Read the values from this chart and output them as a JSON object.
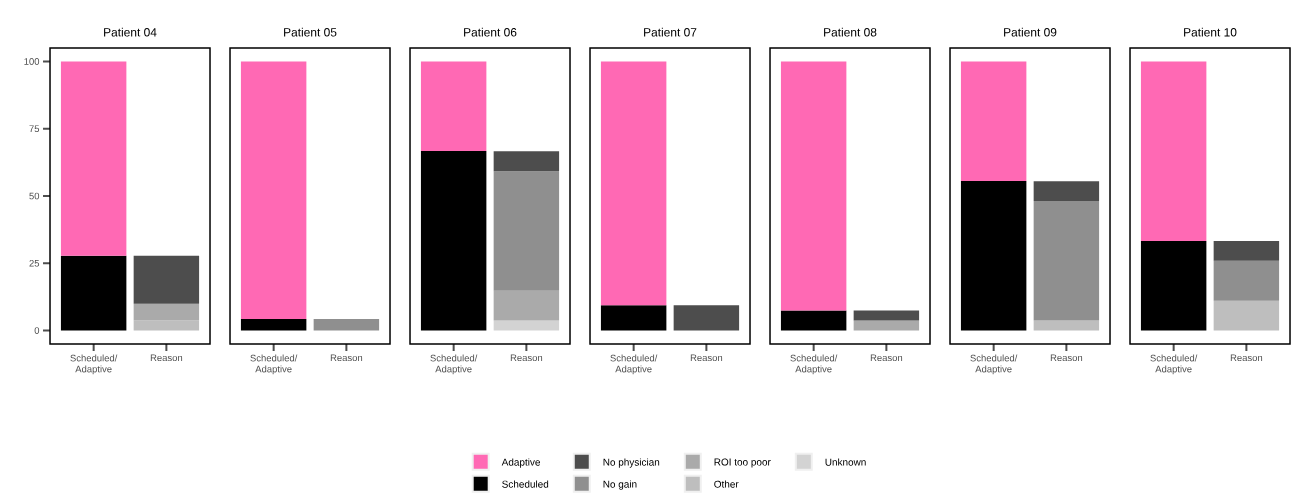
{
  "chart_data": [
    {
      "type": "bar",
      "title": "Patient 04",
      "categories": [
        "Scheduled/ Adaptive",
        "Reason"
      ],
      "stacked": true,
      "ylim": [
        -5,
        105
      ],
      "yticks": [
        0,
        25,
        50,
        75,
        100
      ],
      "series": [
        {
          "color": "#bebebe",
          "values": [
            null,
            3.7
          ]
        },
        {
          "color": "#aaaaaa",
          "values": [
            null,
            6.3
          ]
        },
        {
          "color": "#4d4d4d",
          "values": [
            null,
            17.8
          ]
        },
        {
          "color": "#000000",
          "values": [
            27.8,
            null
          ]
        },
        {
          "color": "#ff69b4",
          "values": [
            72.2,
            null
          ]
        }
      ]
    },
    {
      "type": "bar",
      "title": "Patient 05",
      "categories": [
        "Scheduled/ Adaptive",
        "Reason"
      ],
      "stacked": true,
      "ylim": [
        -5,
        105
      ],
      "tick_labels": "x",
      "series": [
        {
          "color": "#8f8f8f",
          "values": [
            null,
            4.3
          ]
        },
        {
          "color": "#000000",
          "values": [
            4.3,
            null
          ]
        },
        {
          "color": "#ff69b4",
          "values": [
            95.7,
            null
          ]
        }
      ]
    },
    {
      "type": "bar",
      "title": "Patient 06",
      "categories": [
        "Scheduled/ Adaptive",
        "Reason"
      ],
      "stacked": true,
      "ylim": [
        -5,
        105
      ],
      "tick_labels": "x",
      "series": [
        {
          "color": "#d3d3d3",
          "values": [
            null,
            3.7
          ]
        },
        {
          "color": "#aaaaaa",
          "values": [
            null,
            11.1
          ]
        },
        {
          "color": "#8f8f8f",
          "values": [
            null,
            44.4
          ]
        },
        {
          "color": "#4d4d4d",
          "values": [
            null,
            7.4
          ]
        },
        {
          "color": "#000000",
          "values": [
            66.7,
            null
          ]
        },
        {
          "color": "#ff69b4",
          "values": [
            33.3,
            null
          ]
        }
      ]
    },
    {
      "type": "bar",
      "title": "Patient 07",
      "categories": [
        "Scheduled/ Adaptive",
        "Reason"
      ],
      "stacked": true,
      "ylim": [
        -5,
        105
      ],
      "tick_labels": "x",
      "legend": "bottom",
      "series": [
        {
          "name": "Unknown",
          "color": "#d3d3d3",
          "values": [
            null,
            null
          ]
        },
        {
          "name": "Other",
          "color": "#bebebe",
          "values": [
            null,
            null
          ]
        },
        {
          "name": "ROI too poor",
          "color": "#aaaaaa",
          "values": [
            null,
            null
          ]
        },
        {
          "name": "No gain",
          "color": "#8f8f8f",
          "values": [
            null,
            null
          ]
        },
        {
          "name": "No physician",
          "color": "#4d4d4d",
          "values": [
            null,
            9.4
          ]
        },
        {
          "name": "Scheduled",
          "color": "#000000",
          "values": [
            9.4,
            null
          ]
        },
        {
          "name": "Adaptive",
          "color": "#ff69b4",
          "values": [
            90.6,
            null
          ]
        }
      ]
    },
    {
      "type": "bar",
      "title": "Patient 08",
      "categories": [
        "Scheduled/ Adaptive",
        "Reason"
      ],
      "stacked": true,
      "ylim": [
        -5,
        105
      ],
      "tick_labels": "x",
      "series": [
        {
          "color": "#aaaaaa",
          "values": [
            null,
            3.7
          ]
        },
        {
          "color": "#4d4d4d",
          "values": [
            null,
            3.7
          ]
        },
        {
          "color": "#000000",
          "values": [
            7.4,
            null
          ]
        },
        {
          "color": "#ff69b4",
          "values": [
            92.6,
            null
          ]
        }
      ]
    },
    {
      "type": "bar",
      "title": "Patient 09",
      "categories": [
        "Scheduled/ Adaptive",
        "Reason"
      ],
      "stacked": true,
      "ylim": [
        -5,
        105
      ],
      "tick_labels": "x",
      "series": [
        {
          "color": "#bebebe",
          "values": [
            null,
            3.7
          ]
        },
        {
          "color": "#8f8f8f",
          "values": [
            null,
            44.4
          ]
        },
        {
          "color": "#4d4d4d",
          "values": [
            null,
            7.4
          ]
        },
        {
          "color": "#000000",
          "values": [
            55.6,
            null
          ]
        },
        {
          "color": "#ff69b4",
          "values": [
            44.4,
            null
          ]
        }
      ]
    },
    {
      "type": "bar",
      "title": "Patient 10",
      "categories": [
        "Scheduled/ Adaptive",
        "Reason"
      ],
      "stacked": true,
      "ylim": [
        -5,
        105
      ],
      "tick_labels": "x",
      "series": [
        {
          "color": "#bebebe",
          "values": [
            null,
            11.1
          ]
        },
        {
          "color": "#8f8f8f",
          "values": [
            null,
            14.8
          ]
        },
        {
          "color": "#4d4d4d",
          "values": [
            null,
            7.4
          ]
        },
        {
          "color": "#000000",
          "values": [
            33.3,
            null
          ]
        },
        {
          "color": "#ff69b4",
          "values": [
            66.7,
            null
          ]
        }
      ]
    }
  ]
}
